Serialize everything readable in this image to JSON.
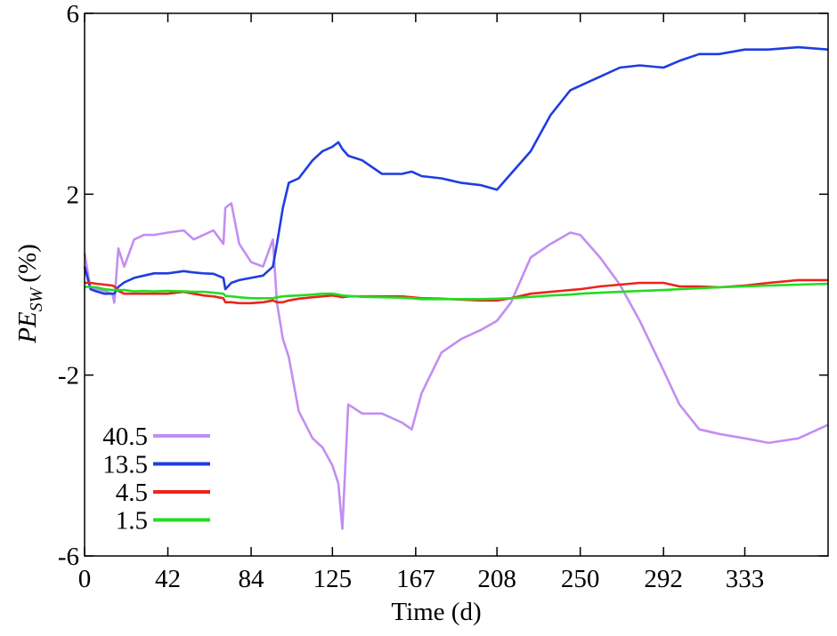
{
  "chart_data": {
    "type": "line",
    "x_label": "Time (d)",
    "y_label": {
      "main": "PE",
      "subscript": "SW",
      "unit": "(%)"
    },
    "xlim": [
      0,
      375
    ],
    "ylim": [
      -6,
      6
    ],
    "xticks": [
      0,
      42,
      84,
      125,
      167,
      208,
      250,
      292,
      333
    ],
    "yticks": [
      -6,
      -2,
      2,
      6
    ],
    "legend": "lower left",
    "x": [
      0,
      3,
      6,
      10,
      14,
      15,
      17,
      20,
      25,
      30,
      35,
      42,
      50,
      55,
      60,
      65,
      70,
      71,
      74,
      78,
      84,
      90,
      95,
      97,
      100,
      103,
      108,
      115,
      120,
      125,
      128,
      130,
      133,
      140,
      150,
      160,
      165,
      170,
      180,
      190,
      200,
      208,
      215,
      225,
      235,
      245,
      250,
      260,
      270,
      280,
      292,
      300,
      310,
      320,
      333,
      345,
      360,
      375
    ],
    "series": [
      {
        "name": "40.5",
        "color": "#c28ef2",
        "values": [
          0.7,
          -0.1,
          -0.1,
          -0.14,
          -0.2,
          -0.4,
          0.8,
          0.4,
          1.0,
          1.1,
          1.1,
          1.15,
          1.2,
          1.0,
          1.1,
          1.2,
          0.9,
          1.7,
          1.8,
          0.9,
          0.5,
          0.4,
          1.0,
          -0.4,
          -1.2,
          -1.6,
          -2.8,
          -3.4,
          -3.6,
          -4.0,
          -4.4,
          -5.4,
          -2.65,
          -2.85,
          -2.85,
          -3.05,
          -3.2,
          -2.4,
          -1.5,
          -1.2,
          -1.0,
          -0.8,
          -0.4,
          0.6,
          0.9,
          1.15,
          1.1,
          0.6,
          0,
          -0.8,
          -1.9,
          -2.65,
          -3.2,
          -3.3,
          -3.4,
          -3.5,
          -3.4,
          -3.1
        ]
      },
      {
        "name": "13.5",
        "color": "#1f3de0",
        "values": [
          0.4,
          -0.1,
          -0.15,
          -0.2,
          -0.2,
          -0.2,
          -0.05,
          0.05,
          0.15,
          0.2,
          0.25,
          0.25,
          0.3,
          0.27,
          0.25,
          0.24,
          0.15,
          -0.1,
          0.04,
          0.1,
          0.15,
          0.2,
          0.4,
          0.9,
          1.7,
          2.25,
          2.35,
          2.75,
          2.95,
          3.05,
          3.15,
          3.0,
          2.85,
          2.75,
          2.45,
          2.45,
          2.5,
          2.4,
          2.35,
          2.25,
          2.2,
          2.1,
          2.45,
          2.95,
          3.75,
          4.3,
          4.4,
          4.6,
          4.8,
          4.85,
          4.8,
          4.95,
          5.1,
          5.1,
          5.2,
          5.2,
          5.25,
          5.2
        ]
      },
      {
        "name": "4.5",
        "color": "#e8261c",
        "values": [
          0.04,
          0.04,
          0.02,
          0,
          -0.02,
          -0.04,
          -0.14,
          -0.2,
          -0.2,
          -0.2,
          -0.2,
          -0.2,
          -0.16,
          -0.2,
          -0.24,
          -0.26,
          -0.3,
          -0.39,
          -0.39,
          -0.41,
          -0.41,
          -0.39,
          -0.35,
          -0.39,
          -0.39,
          -0.35,
          -0.31,
          -0.28,
          -0.26,
          -0.24,
          -0.26,
          -0.28,
          -0.26,
          -0.26,
          -0.26,
          -0.26,
          -0.28,
          -0.3,
          -0.31,
          -0.33,
          -0.35,
          -0.35,
          -0.3,
          -0.2,
          -0.16,
          -0.12,
          -0.1,
          -0.04,
          0,
          0.04,
          0.04,
          -0.04,
          -0.04,
          -0.06,
          -0.02,
          0.04,
          0.1,
          0.1
        ]
      },
      {
        "name": "1.5",
        "color": "#22dd22",
        "values": [
          -0.05,
          -0.05,
          -0.06,
          -0.1,
          -0.12,
          -0.12,
          -0.12,
          -0.12,
          -0.15,
          -0.14,
          -0.15,
          -0.14,
          -0.15,
          -0.16,
          -0.16,
          -0.18,
          -0.2,
          -0.25,
          -0.26,
          -0.28,
          -0.3,
          -0.3,
          -0.3,
          -0.28,
          -0.26,
          -0.25,
          -0.24,
          -0.22,
          -0.2,
          -0.2,
          -0.22,
          -0.24,
          -0.25,
          -0.27,
          -0.28,
          -0.29,
          -0.3,
          -0.32,
          -0.32,
          -0.32,
          -0.32,
          -0.31,
          -0.3,
          -0.27,
          -0.24,
          -0.22,
          -0.2,
          -0.18,
          -0.16,
          -0.14,
          -0.12,
          -0.1,
          -0.08,
          -0.06,
          -0.04,
          -0.02,
          0,
          0.02
        ]
      }
    ]
  }
}
